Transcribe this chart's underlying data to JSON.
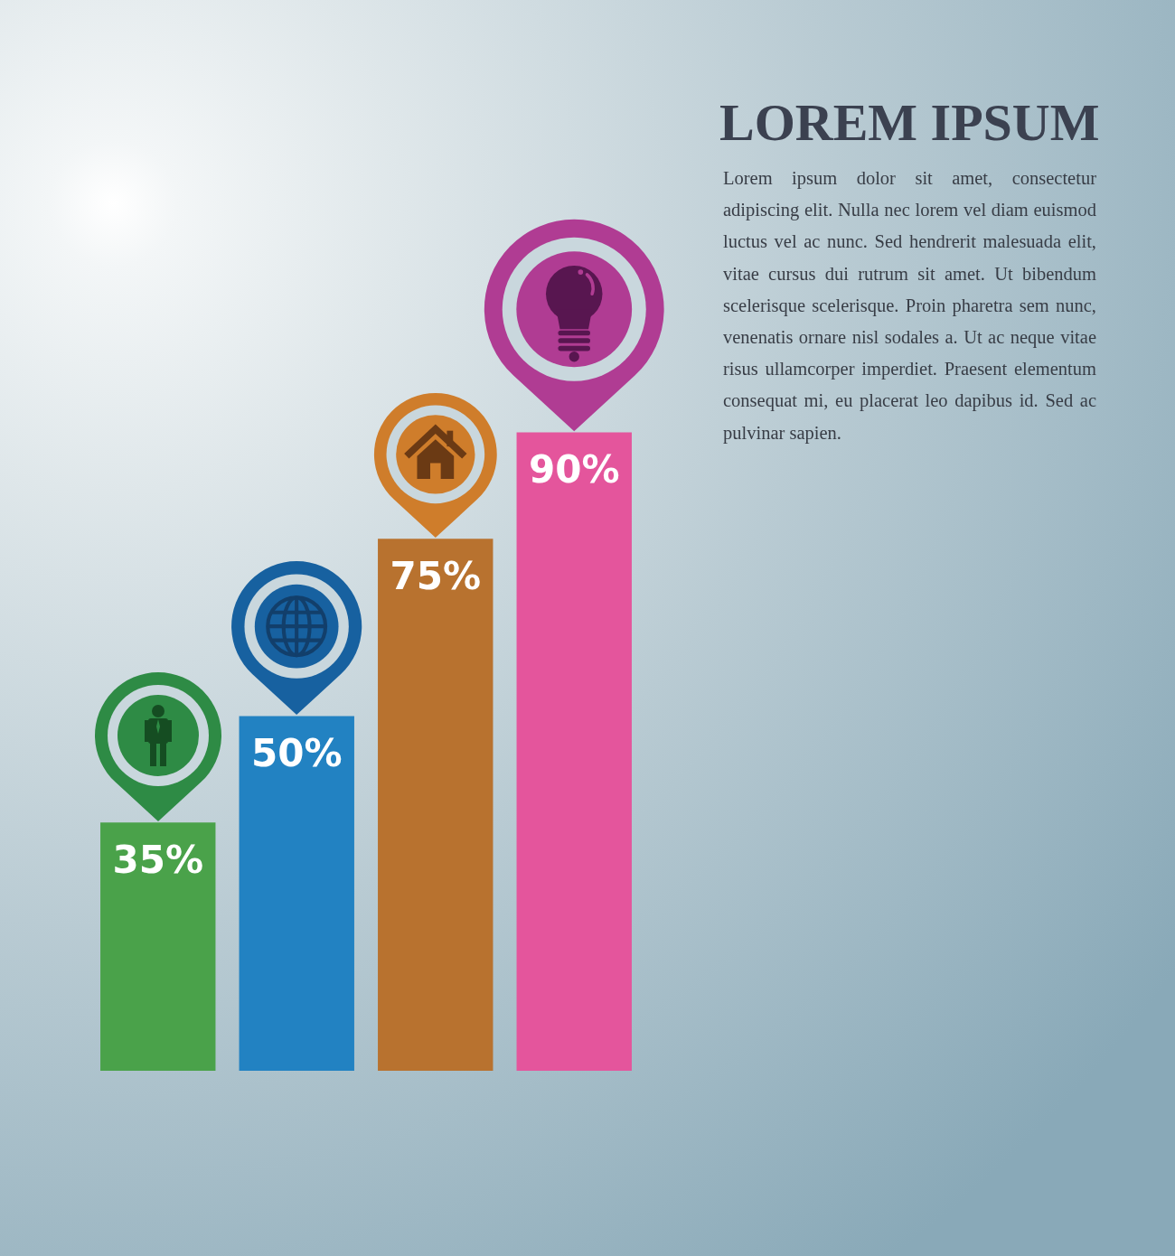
{
  "chart_data": {
    "type": "bar",
    "title": "LOREM IPSUM",
    "annotations": [
      "Lorem ipsum dolor sit amet, consectetur adipiscing elit. Nulla nec lorem vel diam euismod luctus vel ac nunc. Sed hendrerit malesuada elit, vitae cursus dui rutrum sit amet. Ut bibendum scelerisque scelerisque. Proin pharetra sem nunc, venenatis ornare nisl sodales a. Ut ac neque vitae risus ullamcorper imperdiet. Praesent elementum consequat mi, eu placerat leo dapibus id. Sed ac pulvinar sapien."
    ],
    "categories": [
      null,
      null,
      null,
      null
    ],
    "values": [
      35,
      50,
      75,
      90
    ],
    "colors": [
      "#4aa24a",
      "#2282c2",
      "#b8722f",
      "#e4559c"
    ],
    "value_labels": [
      "35%",
      "50%",
      "75%",
      "90%"
    ],
    "tick_labels": false
  }
}
